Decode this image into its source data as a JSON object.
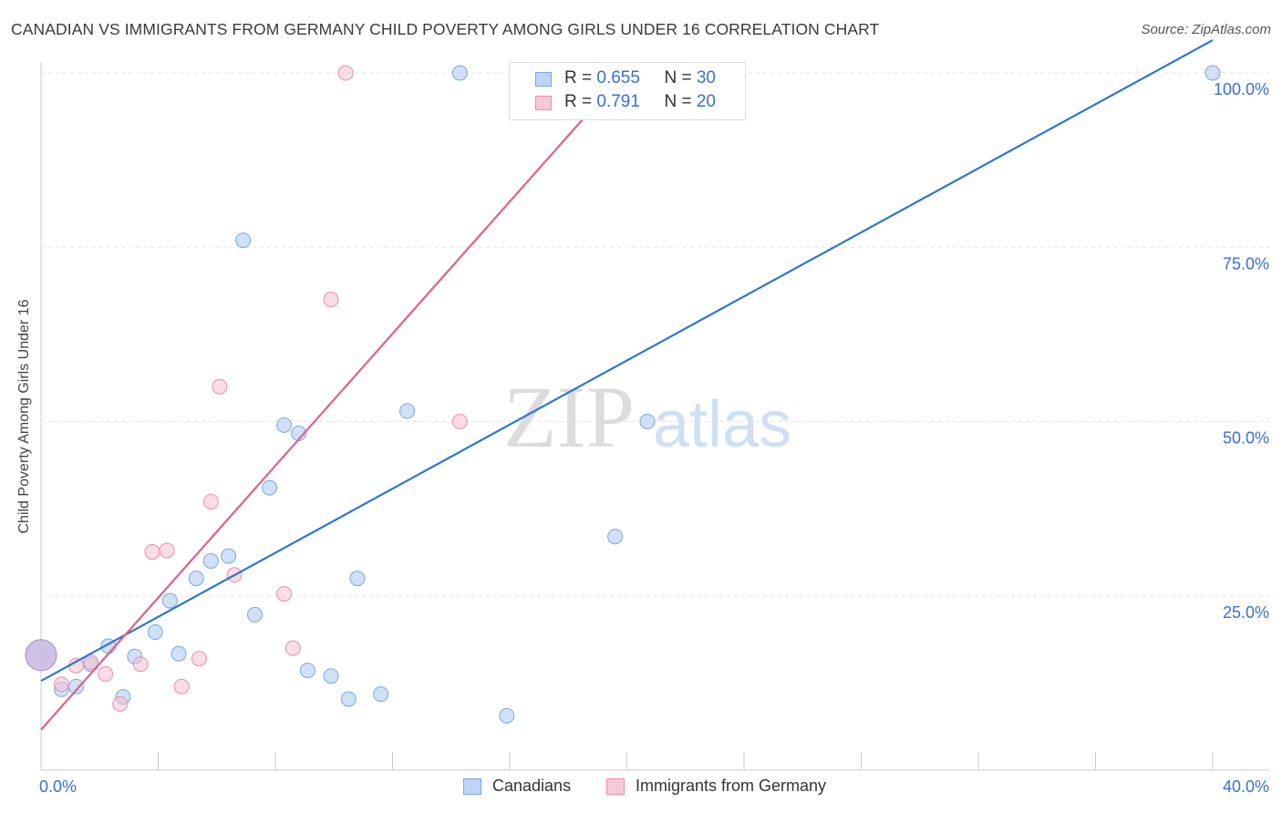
{
  "title": "CANADIAN VS IMMIGRANTS FROM GERMANY CHILD POVERTY AMONG GIRLS UNDER 16 CORRELATION CHART",
  "source": "Source: ZipAtlas.com",
  "watermark": {
    "zip": "ZIP",
    "atlas": "atlas"
  },
  "legend_box": {
    "rows": [
      {
        "r_label": "R = ",
        "r_value": "0.655",
        "n_label": "N = ",
        "n_value": "30"
      },
      {
        "r_label": "R = ",
        "r_value": "0.791",
        "n_label": "N = ",
        "n_value": "20"
      }
    ]
  },
  "chart_data": {
    "type": "scatter",
    "title": "CANADIAN VS IMMIGRANTS FROM GERMANY CHILD POVERTY AMONG GIRLS UNDER 16 CORRELATION CHART",
    "xlabel": "",
    "ylabel": "Child Poverty Among Girls Under 16",
    "xlim": [
      0,
      40
    ],
    "ylim": [
      0,
      100
    ],
    "x_tick_labels": [
      "0.0%",
      "40.0%"
    ],
    "y_tick_labels": [
      "100.0%",
      "75.0%",
      "50.0%",
      "25.0%"
    ],
    "y_tick_values": [
      100,
      75,
      50,
      25
    ],
    "grid": true,
    "legend": "bottom-center",
    "series": [
      {
        "name": "Canadians",
        "color": "#a9c8f0",
        "stroke": "#7aa6e0",
        "line_color": "#2e74d4",
        "r": 0.655,
        "n": 30,
        "trend": [
          [
            0,
            12.8
          ],
          [
            40,
            104.7
          ]
        ],
        "points": [
          [
            0.0,
            16.5
          ],
          [
            0.7,
            11.6
          ],
          [
            1.2,
            12.0
          ],
          [
            1.7,
            15.2
          ],
          [
            2.3,
            17.8
          ],
          [
            2.8,
            10.5
          ],
          [
            3.2,
            16.3
          ],
          [
            3.9,
            19.8
          ],
          [
            4.4,
            24.3
          ],
          [
            4.7,
            16.7
          ],
          [
            5.3,
            27.5
          ],
          [
            5.8,
            30.0
          ],
          [
            6.4,
            30.7
          ],
          [
            6.9,
            76.0
          ],
          [
            7.3,
            22.3
          ],
          [
            7.8,
            40.5
          ],
          [
            8.3,
            49.5
          ],
          [
            8.8,
            48.3
          ],
          [
            9.1,
            14.3
          ],
          [
            9.9,
            13.5
          ],
          [
            10.5,
            10.2
          ],
          [
            10.8,
            27.5
          ],
          [
            11.6,
            10.9
          ],
          [
            12.5,
            51.5
          ],
          [
            14.3,
            100.0
          ],
          [
            15.9,
            7.8
          ],
          [
            19.6,
            33.5
          ],
          [
            20.7,
            50.0
          ],
          [
            21.7,
            100.0
          ],
          [
            40.0,
            100.0
          ]
        ]
      },
      {
        "name": "Immigrants from Germany",
        "color": "#f5bfd0",
        "stroke": "#e78fab",
        "line_color": "#e0608a",
        "r": 0.791,
        "n": 20,
        "trend": [
          [
            0,
            5.8
          ],
          [
            19.9,
            100
          ]
        ],
        "points": [
          [
            0.7,
            12.3
          ],
          [
            1.2,
            15.0
          ],
          [
            1.7,
            15.5
          ],
          [
            2.2,
            13.8
          ],
          [
            2.7,
            9.5
          ],
          [
            3.4,
            15.2
          ],
          [
            3.8,
            31.3
          ],
          [
            4.3,
            31.5
          ],
          [
            4.8,
            12.0
          ],
          [
            5.4,
            16.0
          ],
          [
            5.8,
            38.5
          ],
          [
            6.1,
            55.0
          ],
          [
            6.6,
            28.0
          ],
          [
            8.3,
            25.3
          ],
          [
            8.6,
            17.5
          ],
          [
            9.9,
            67.5
          ],
          [
            10.4,
            100.0
          ],
          [
            14.3,
            50.0
          ],
          [
            18.4,
            100.0
          ],
          [
            19.3,
            100.0
          ]
        ]
      }
    ]
  },
  "bottom_legend": {
    "items": [
      {
        "label": "Canadians"
      },
      {
        "label": "Immigrants from Germany"
      }
    ]
  }
}
